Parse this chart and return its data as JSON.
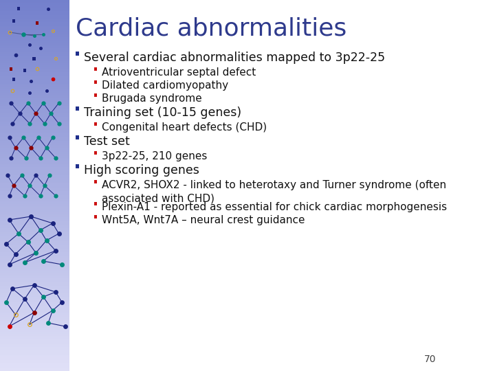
{
  "title": "Cardiac abnormalities",
  "title_color": "#2E3A8C",
  "title_fontsize": 26,
  "background_color": "#FFFFFF",
  "bullet_color": "#1F2F8C",
  "sub_bullet_color": "#CC1111",
  "text_color": "#111111",
  "bullet_fontsize": 12.5,
  "sub_bullet_fontsize": 11,
  "page_number": "70",
  "content": [
    {
      "level": 1,
      "text": "Several cardiac abnormalities mapped to 3p22-25"
    },
    {
      "level": 2,
      "text": "Atrioventricular septal defect"
    },
    {
      "level": 2,
      "text": "Dilated cardiomyopathy"
    },
    {
      "level": 2,
      "text": "Brugada syndrome"
    },
    {
      "level": 1,
      "text": "Training set (10-15 genes)"
    },
    {
      "level": 2,
      "text": "Congenital heart defects (CHD)"
    },
    {
      "level": 1,
      "text": "Test set"
    },
    {
      "level": 2,
      "text": "3p22-25, 210 genes"
    },
    {
      "level": 1,
      "text": "High scoring genes"
    },
    {
      "level": 2,
      "text": "ACVR2, SHOX2 - linked to heterotaxy and Turner syndrome (often\nassociated with CHD)"
    },
    {
      "level": 2,
      "text": "Plexin-A1 - reported as essential for chick cardiac morphogenesis"
    },
    {
      "level": 2,
      "text": "Wnt5A, Wnt7A – neural crest guidance"
    }
  ]
}
